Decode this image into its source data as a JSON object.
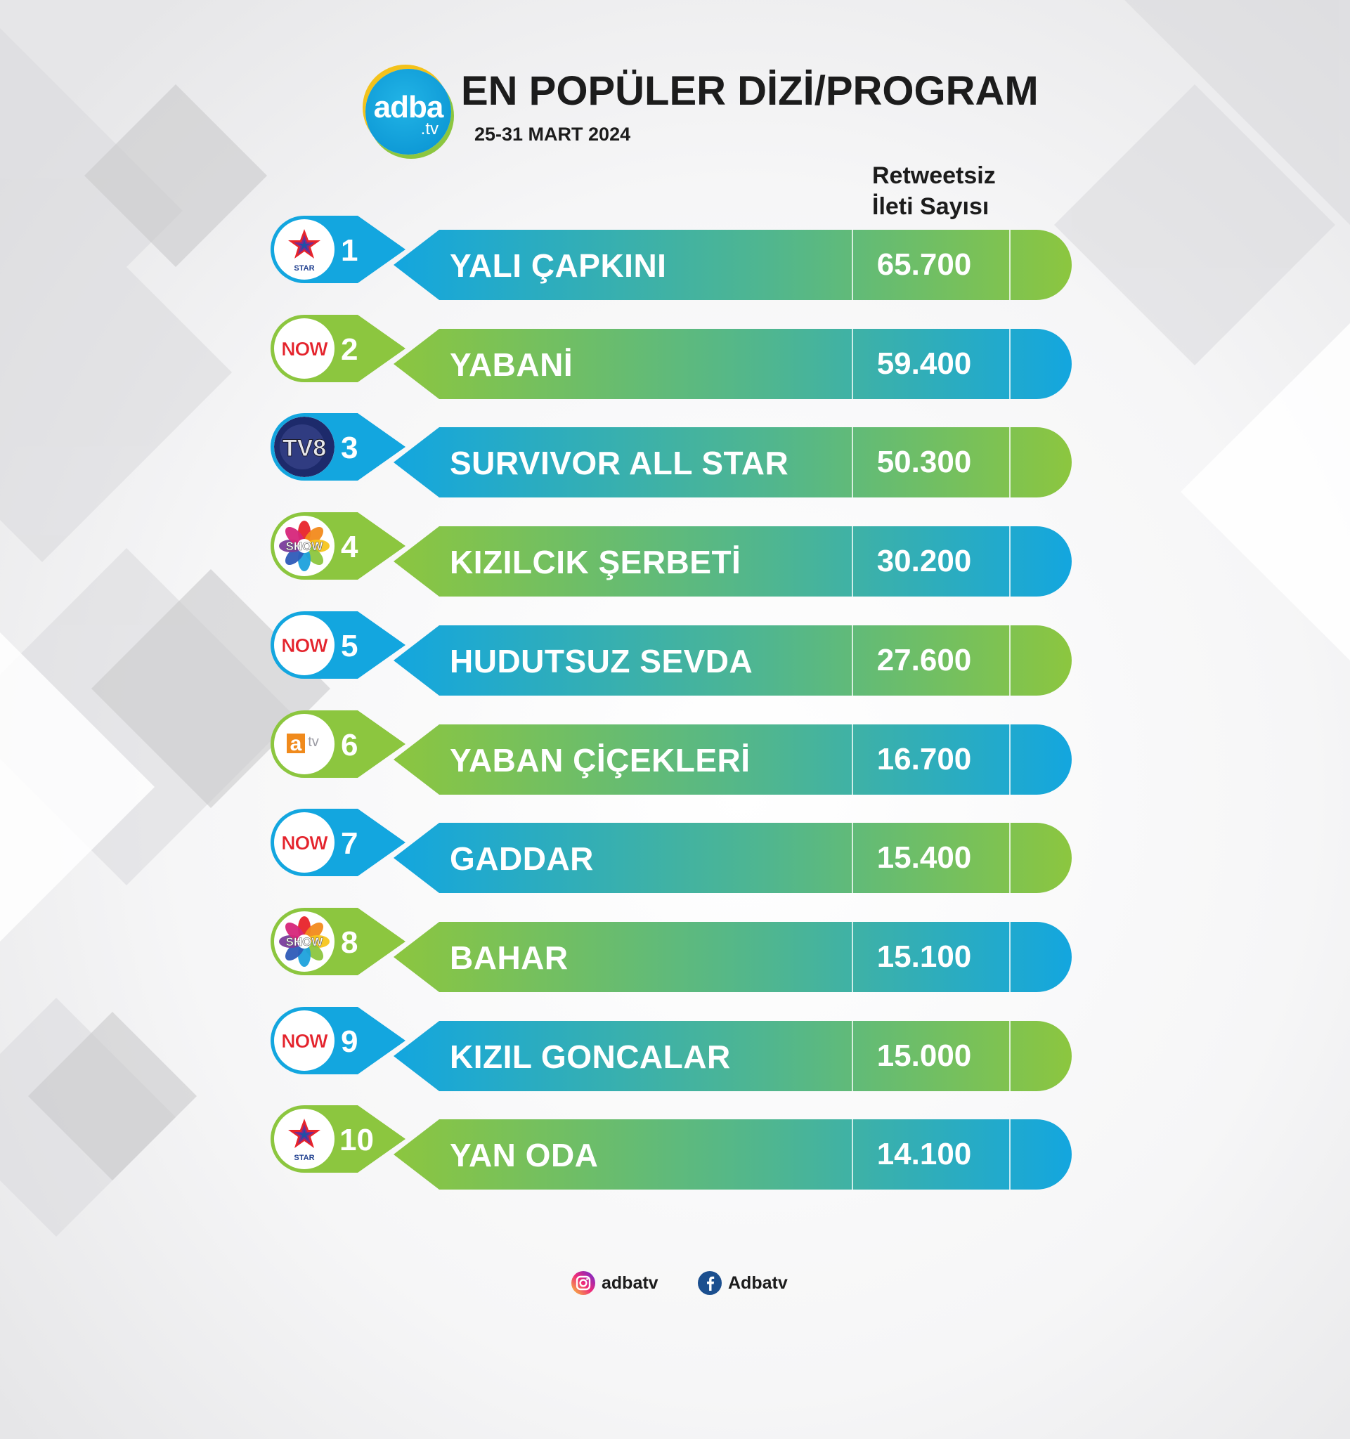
{
  "header": {
    "logo_main": "adba",
    "logo_sub": ".tv",
    "title": "EN POPÜLER DİZİ/PROGRAM",
    "subtitle": "25-31 MART 2024",
    "column_header_line1": "Retweetsiz",
    "column_header_line2": "İleti Sayısı"
  },
  "colors": {
    "blue": "#13a6df",
    "green": "#8cc63f",
    "text_dark": "#1c1c1c",
    "now_red": "#e4232c",
    "tv8_navy": "#1d2a6b",
    "atv_orange": "#f08a1c"
  },
  "chart_data": {
    "type": "table",
    "title": "EN POPÜLER DİZİ/PROGRAM",
    "subtitle": "25-31 MART 2024",
    "value_label": "Retweetsiz İleti Sayısı",
    "rows": [
      {
        "rank": "1",
        "name": "YALI ÇAPKINI",
        "value_text": "65.700",
        "value": 65700,
        "channel": "star-logo-icon"
      },
      {
        "rank": "2",
        "name": "YABANİ",
        "value_text": "59.400",
        "value": 59400,
        "channel": "now-logo-icon"
      },
      {
        "rank": "3",
        "name": "SURVIVOR ALL STAR",
        "value_text": "50.300",
        "value": 50300,
        "channel": "tv8-logo-icon"
      },
      {
        "rank": "4",
        "name": "KIZILCIK ŞERBETİ",
        "value_text": "30.200",
        "value": 30200,
        "channel": "show-logo-icon"
      },
      {
        "rank": "5",
        "name": "HUDUTSUZ SEVDA",
        "value_text": "27.600",
        "value": 27600,
        "channel": "now-logo-icon"
      },
      {
        "rank": "6",
        "name": "YABAN ÇİÇEKLERİ",
        "value_text": "16.700",
        "value": 16700,
        "channel": "atv-logo-icon"
      },
      {
        "rank": "7",
        "name": "GADDAR",
        "value_text": "15.400",
        "value": 15400,
        "channel": "now-logo-icon"
      },
      {
        "rank": "8",
        "name": "BAHAR",
        "value_text": "15.100",
        "value": 15100,
        "channel": "show-logo-icon"
      },
      {
        "rank": "9",
        "name": "KIZIL GONCALAR",
        "value_text": "15.000",
        "value": 15000,
        "channel": "now-logo-icon"
      },
      {
        "rank": "10",
        "name": "YAN ODA",
        "value_text": "14.100",
        "value": 14100,
        "channel": "star-logo-icon"
      }
    ]
  },
  "logos": {
    "now_text": "NOW",
    "star_text": "STAR",
    "show_text": "SHOW",
    "tv8_text": "TV8",
    "atv_text": "a",
    "atv_sub": "tv"
  },
  "footer": {
    "instagram_handle": "adbatv",
    "instagram_icon": "instagram-icon",
    "facebook_handle": "Adbatv",
    "facebook_icon": "facebook-icon"
  }
}
